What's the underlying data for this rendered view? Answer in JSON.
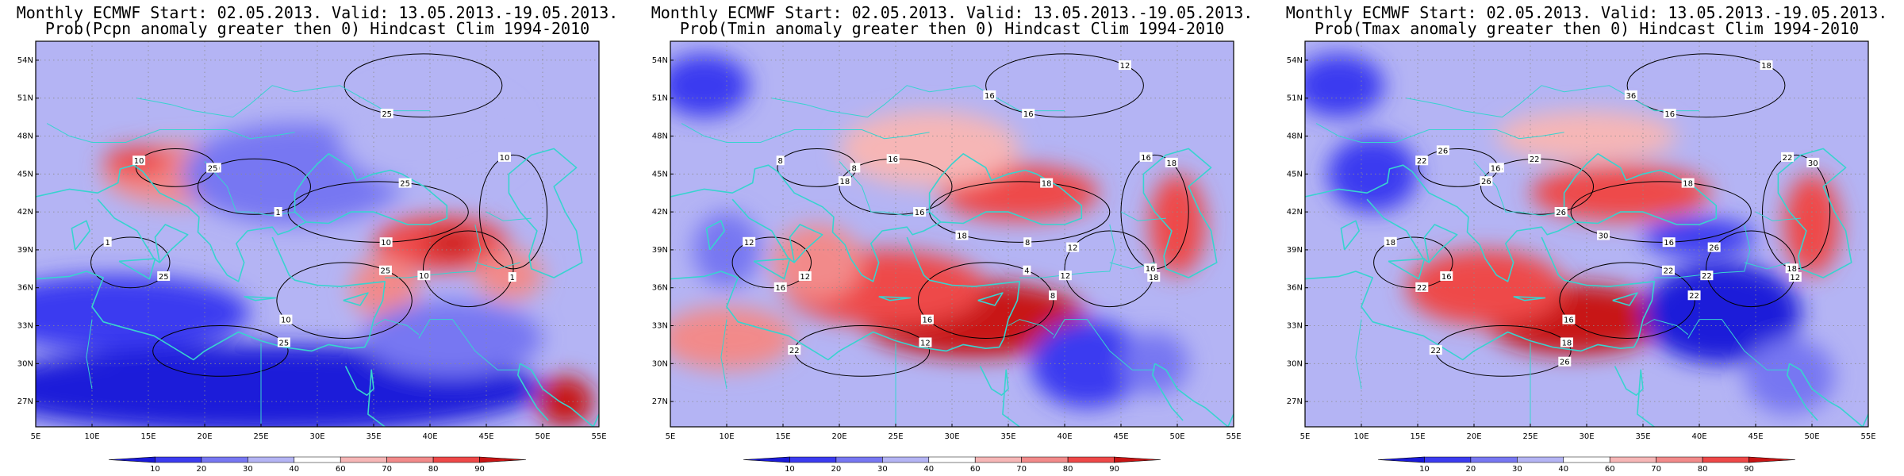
{
  "colors": {
    "scale": [
      "#1a1ad9",
      "#3b3bf0",
      "#7777f2",
      "#b4b4f4",
      "#ffffff",
      "#f6b6b6",
      "#f28a8a",
      "#ee4848",
      "#c81414"
    ],
    "coast": "#38d3cf",
    "contour": "#000000",
    "grid": "#8c8c8c"
  },
  "colorbar": {
    "ticks": [
      "10",
      "20",
      "30",
      "40",
      "60",
      "70",
      "80",
      "90"
    ]
  },
  "axes": {
    "lat_labels": [
      "54N",
      "51N",
      "48N",
      "45N",
      "42N",
      "39N",
      "36N",
      "33N",
      "30N",
      "27N"
    ],
    "lon_labels": [
      "5E",
      "10E",
      "15E",
      "20E",
      "25E",
      "30E",
      "35E",
      "40E",
      "45E",
      "50E",
      "55E"
    ]
  },
  "panels": [
    {
      "title_line1": "Monthly ECMWF Start: 02.05.2013. Valid: 13.05.2013.-19.05.2013.",
      "title_line2": "Prob(Pcpn anomaly greater then 0) Hindcast Clim 1994-2010",
      "contour_labels": [
        "10",
        "25",
        "10",
        "25",
        "10",
        "25",
        "10",
        "25",
        "25",
        "10",
        "1",
        "25",
        "10",
        "1",
        "1"
      ],
      "blobs": [
        {
          "lon": 18,
          "lat": 45,
          "rx": 7,
          "ry": 2.5,
          "level": 6
        },
        {
          "lon": 14,
          "lat": 46,
          "rx": 3,
          "ry": 1.2,
          "level": 7
        },
        {
          "lon": 41,
          "lat": 39.5,
          "rx": 6,
          "ry": 2.2,
          "level": 7
        },
        {
          "lon": 42,
          "lat": 39.5,
          "rx": 2.5,
          "ry": 1,
          "level": 8
        },
        {
          "lon": 36,
          "lat": 36,
          "rx": 3,
          "ry": 2.5,
          "level": 6
        },
        {
          "lon": 47,
          "lat": 37,
          "rx": 3,
          "ry": 2,
          "level": 6
        },
        {
          "lon": 28,
          "lat": 45,
          "rx": 10,
          "ry": 4,
          "level": 2
        },
        {
          "lon": 40,
          "lat": 48,
          "rx": 8,
          "ry": 4,
          "level": 3
        },
        {
          "lon": 12,
          "lat": 34,
          "rx": 12,
          "ry": 3,
          "level": 1
        },
        {
          "lon": 25,
          "lat": 28,
          "rx": 25,
          "ry": 3.5,
          "level": 0
        },
        {
          "lon": 42,
          "lat": 32,
          "rx": 8,
          "ry": 3,
          "level": 2
        },
        {
          "lon": 52,
          "lat": 27,
          "rx": 2.5,
          "ry": 2,
          "level": 8
        }
      ]
    },
    {
      "title_line1": "Monthly ECMWF Start: 02.05.2013. Valid: 13.05.2013.-19.05.2013.",
      "title_line2": "Prob(Tmin anomaly greater then 0) Hindcast Clim 1994-2010",
      "contour_labels": [
        "8",
        "8",
        "8",
        "4",
        "12",
        "12",
        "16",
        "16",
        "12",
        "8",
        "16",
        "18",
        "16",
        "18",
        "12",
        "16",
        "12",
        "22",
        "18",
        "16",
        "18",
        "8",
        "12",
        "16",
        "18",
        "16"
      ],
      "blobs": [
        {
          "lon": 36,
          "lat": 43.5,
          "rx": 7,
          "ry": 2.2,
          "level": 7
        },
        {
          "lon": 32,
          "lat": 33.5,
          "rx": 10,
          "ry": 3,
          "level": 8
        },
        {
          "lon": 24,
          "lat": 36,
          "rx": 9,
          "ry": 3,
          "level": 7
        },
        {
          "lon": 18,
          "lat": 38,
          "rx": 4,
          "ry": 3,
          "level": 6
        },
        {
          "lon": 50,
          "lat": 41,
          "rx": 2.5,
          "ry": 4,
          "level": 7
        },
        {
          "lon": 28,
          "lat": 47,
          "rx": 8,
          "ry": 3,
          "level": 5
        },
        {
          "lon": 8,
          "lat": 52,
          "rx": 4,
          "ry": 2.5,
          "level": 1
        },
        {
          "lon": 10,
          "lat": 39,
          "rx": 3,
          "ry": 3,
          "level": 2
        },
        {
          "lon": 42,
          "lat": 30,
          "rx": 5,
          "ry": 3.5,
          "level": 1
        },
        {
          "lon": 48,
          "lat": 30,
          "rx": 3,
          "ry": 2.5,
          "level": 2
        },
        {
          "lon": 10,
          "lat": 32,
          "rx": 6,
          "ry": 2.5,
          "level": 6
        }
      ]
    },
    {
      "title_line1": "Monthly ECMWF Start: 02.05.2013. Valid: 13.05.2013.-19.05.2013.",
      "title_line2": "Prob(Tmax anomaly greater then 0) Hindcast Clim 1994-2010",
      "contour_labels": [
        "16",
        "16",
        "16",
        "22",
        "22",
        "16",
        "22",
        "16",
        "18",
        "22",
        "26",
        "18",
        "16",
        "12",
        "18",
        "18",
        "18",
        "22",
        "26",
        "22",
        "30",
        "22",
        "26",
        "22",
        "30",
        "36",
        "26",
        "26"
      ],
      "blobs": [
        {
          "lon": 33,
          "lat": 43.5,
          "rx": 8,
          "ry": 2.2,
          "level": 7
        },
        {
          "lon": 29,
          "lat": 33.5,
          "rx": 8,
          "ry": 2.8,
          "level": 8
        },
        {
          "lon": 21,
          "lat": 36,
          "rx": 7,
          "ry": 3,
          "level": 7
        },
        {
          "lon": 50,
          "lat": 41,
          "rx": 2.5,
          "ry": 4,
          "level": 7
        },
        {
          "lon": 42,
          "lat": 34,
          "rx": 7,
          "ry": 4,
          "level": 0
        },
        {
          "lon": 11,
          "lat": 45,
          "rx": 4,
          "ry": 3,
          "level": 1
        },
        {
          "lon": 8,
          "lat": 52,
          "rx": 4,
          "ry": 2.5,
          "level": 1
        },
        {
          "lon": 40,
          "lat": 40,
          "rx": 5,
          "ry": 1.5,
          "level": 1
        },
        {
          "lon": 48,
          "lat": 29,
          "rx": 4,
          "ry": 3,
          "level": 2
        },
        {
          "lon": 30,
          "lat": 48,
          "rx": 8,
          "ry": 2,
          "level": 5
        }
      ]
    }
  ]
}
